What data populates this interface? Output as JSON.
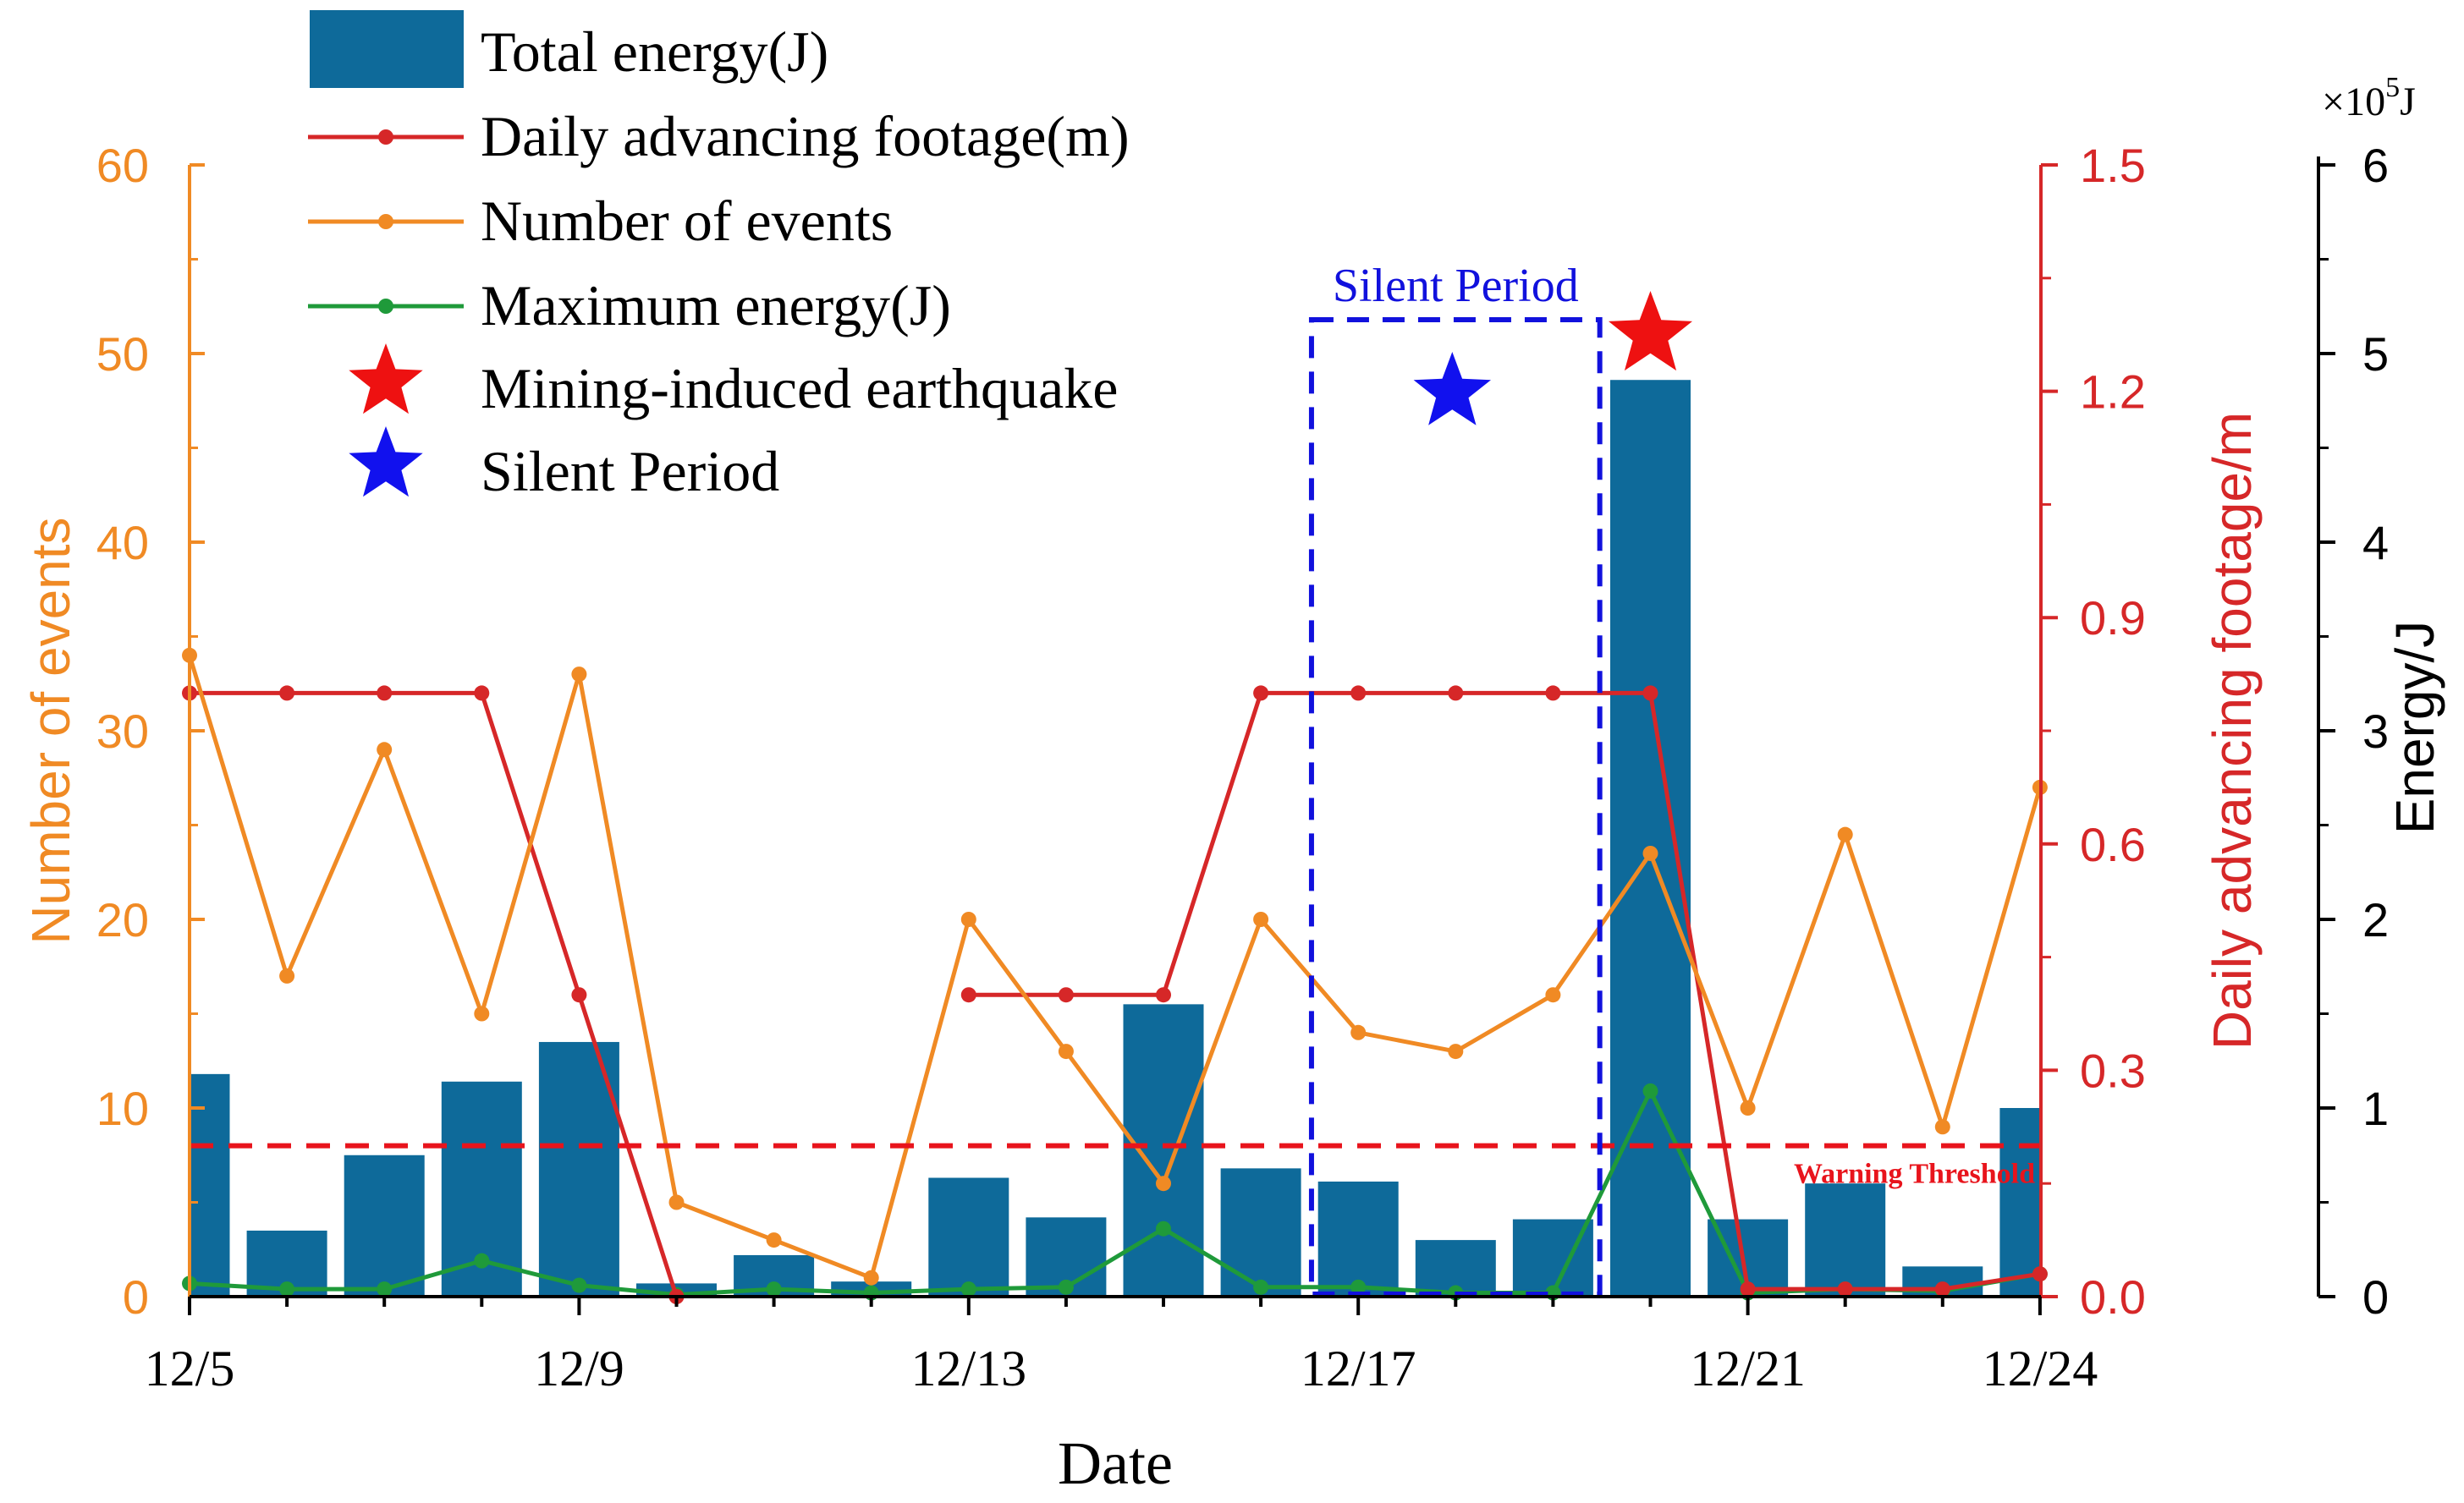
{
  "chart_data": {
    "type": "bar+line",
    "x_labels": [
      "12/5",
      "12/6",
      "12/7",
      "12/8",
      "12/9",
      "12/10",
      "12/11",
      "12/12",
      "12/13",
      "12/14",
      "12/15",
      "12/16",
      "12/17",
      "12/18",
      "12/19",
      "12/20",
      "12/21",
      "12/22",
      "12/23",
      "12/24"
    ],
    "x_ticks": [
      "12/5",
      "12/9",
      "12/13",
      "12/17",
      "12/21",
      "12/24"
    ],
    "xlabel": "Date",
    "left_axis": {
      "label": "Number of events",
      "ylim": [
        0,
        60
      ],
      "ticks": [
        "0",
        "10",
        "20",
        "30",
        "40",
        "50",
        "60"
      ],
      "color": "#f08a24"
    },
    "right_axis_1": {
      "label": "Daily advancing footage/m",
      "ylim": [
        0,
        1.5
      ],
      "ticks": [
        "0.0",
        "0.3",
        "0.6",
        "0.9",
        "1.2",
        "1.5"
      ],
      "color": "#d62728"
    },
    "right_axis_2": {
      "label": "Energy/J",
      "ylim": [
        0,
        6
      ],
      "ticks": [
        "0",
        "1",
        "2",
        "3",
        "4",
        "5",
        "6"
      ],
      "multiplier_base": "×10",
      "multiplier_exp": "5",
      "multiplier_unit": "J",
      "color": "#000000"
    },
    "series": [
      {
        "name": "Total energy(J)",
        "kind": "bar",
        "axis": "energy",
        "color": "#0e6a9a",
        "values": [
          1.18,
          0.35,
          0.75,
          1.14,
          1.35,
          0.07,
          0.22,
          0.08,
          0.63,
          0.42,
          1.55,
          0.68,
          0.61,
          0.3,
          0.41,
          4.86,
          0.41,
          0.6,
          0.16,
          1.0
        ]
      },
      {
        "name": "Daily advancing footage(m)",
        "kind": "line",
        "axis": "footage",
        "color": "#d62728",
        "values": [
          0.8,
          0.8,
          0.8,
          0.8,
          0.4,
          0.0,
          null,
          null,
          0.4,
          0.4,
          0.4,
          0.8,
          0.8,
          0.8,
          0.8,
          0.8,
          0.01,
          0.01,
          0.01,
          0.03
        ]
      },
      {
        "name": "Number of events",
        "kind": "line",
        "axis": "events",
        "color": "#f08a24",
        "values": [
          34,
          17,
          29,
          15,
          33,
          5,
          3,
          1,
          20,
          13,
          6,
          20,
          14,
          13,
          16,
          23.5,
          10,
          24.5,
          9,
          27
        ]
      },
      {
        "name": "Maximum energy(J)",
        "kind": "line",
        "axis": "energy",
        "color": "#1f9a3a",
        "values": [
          0.07,
          0.04,
          0.04,
          0.19,
          0.06,
          0.01,
          0.04,
          0.02,
          0.04,
          0.05,
          0.36,
          0.05,
          0.05,
          0.02,
          0.02,
          1.09,
          0.02,
          0.04,
          0.03,
          0.12
        ]
      }
    ],
    "warning_threshold": {
      "label": "Warning Threshold",
      "value_events": 8,
      "color": "#e8141c"
    },
    "silent_period": {
      "label": "Silent Period",
      "start_day": "12/17",
      "end_day": "12/20",
      "color": "#1111dd"
    },
    "markers": [
      {
        "name": "Mining-induced earthquake",
        "day": "12/20",
        "color": "#ee1111"
      },
      {
        "name": "Silent Period",
        "day": "12/18",
        "color": "#1111ee"
      }
    ],
    "legend": [
      {
        "label": "Total energy(J)",
        "kind": "bar",
        "color": "#0e6a9a"
      },
      {
        "label": "Daily advancing footage(m)",
        "kind": "line",
        "color": "#d62728"
      },
      {
        "label": "Number of events",
        "kind": "line",
        "color": "#f08a24"
      },
      {
        "label": "Maximum energy(J)",
        "kind": "line",
        "color": "#1f9a3a"
      },
      {
        "label": "Mining-induced earthquake",
        "kind": "star",
        "color": "#ee1111"
      },
      {
        "label": "Silent Period",
        "kind": "star",
        "color": "#1111ee"
      }
    ],
    "legend_position": "top-left"
  }
}
